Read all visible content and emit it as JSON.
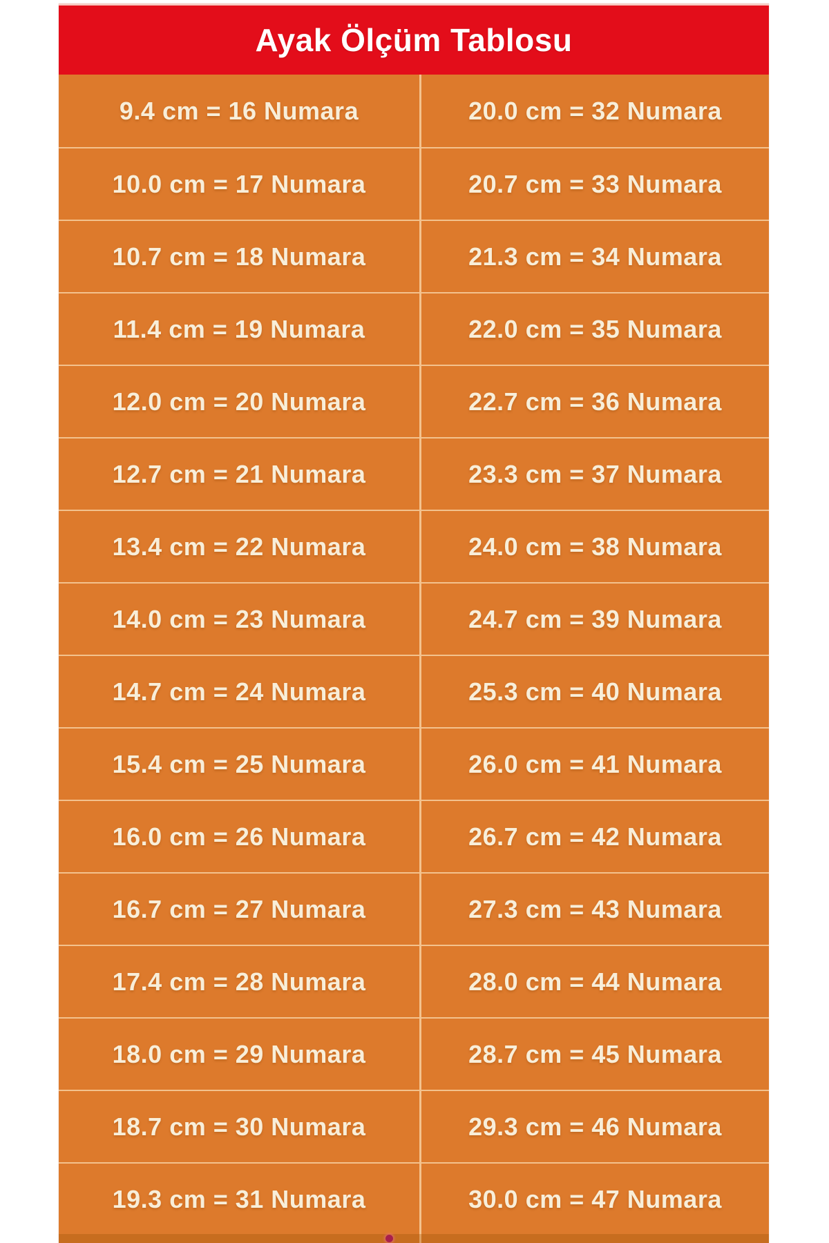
{
  "header": {
    "title": "Ayak Ölçüm Tablosu"
  },
  "table": {
    "unit_left": "cm",
    "unit_right": "Numara",
    "rows": [
      {
        "left": "9.4 cm = 16 Numara",
        "right": "20.0 cm = 32 Numara"
      },
      {
        "left": "10.0 cm = 17 Numara",
        "right": "20.7 cm = 33 Numara"
      },
      {
        "left": "10.7 cm = 18 Numara",
        "right": "21.3 cm = 34 Numara"
      },
      {
        "left": "11.4 cm = 19 Numara",
        "right": "22.0 cm = 35 Numara"
      },
      {
        "left": "12.0 cm = 20 Numara",
        "right": "22.7 cm = 36 Numara"
      },
      {
        "left": "12.7 cm = 21 Numara",
        "right": "23.3 cm = 37 Numara"
      },
      {
        "left": "13.4 cm = 22 Numara",
        "right": "24.0 cm = 38 Numara"
      },
      {
        "left": "14.0 cm = 23 Numara",
        "right": "24.7 cm = 39 Numara"
      },
      {
        "left": "14.7 cm = 24 Numara",
        "right": "25.3 cm = 40 Numara"
      },
      {
        "left": "15.4 cm = 25 Numara",
        "right": "26.0 cm = 41 Numara"
      },
      {
        "left": "16.0 cm = 26 Numara",
        "right": "26.7 cm = 42 Numara"
      },
      {
        "left": "16.7 cm = 27 Numara",
        "right": "27.3 cm = 43 Numara"
      },
      {
        "left": "17.4 cm = 28 Numara",
        "right": "28.0 cm = 44 Numara"
      },
      {
        "left": "18.0 cm = 29 Numara",
        "right": "28.7 cm = 45 Numara"
      },
      {
        "left": "18.7 cm = 30 Numara",
        "right": "29.3 cm = 46 Numara"
      },
      {
        "left": "19.3 cm = 31 Numara",
        "right": "30.0 cm = 47 Numara"
      }
    ]
  },
  "colors": {
    "header_red": "#e30d1a",
    "body_orange": "#dd7a2c",
    "divider_cream": "#fadbaf",
    "text_cream": "#f8eed9",
    "title_white": "#ffffff",
    "footer_band_orange": "#c76d1f",
    "watermark_dot_crimson": "#a81f4b"
  }
}
